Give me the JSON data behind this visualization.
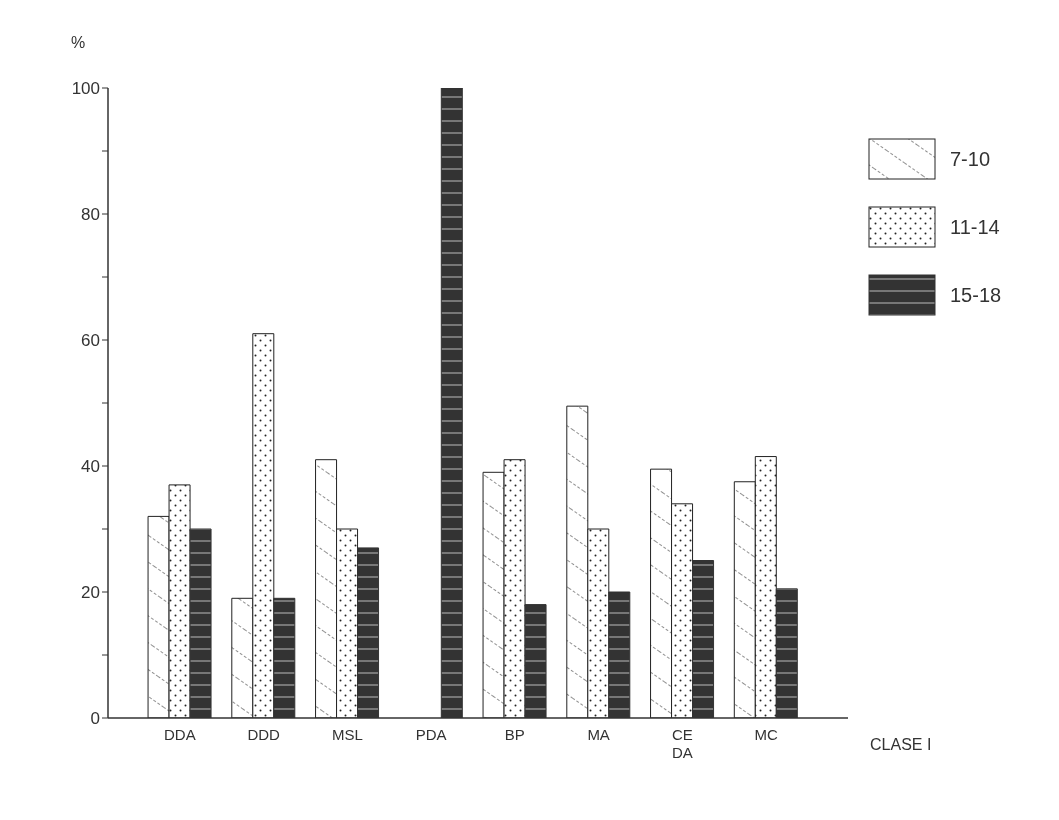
{
  "chart_data": {
    "type": "bar",
    "categories": [
      "DDA",
      "DDD",
      "MSL",
      "PDA",
      "BP",
      "MA",
      "CE\nDA",
      "MC"
    ],
    "series": [
      {
        "name": "7-10",
        "color": "#222222",
        "values": [
          32,
          19,
          41,
          null,
          39,
          49.5,
          39.5,
          37.5
        ]
      },
      {
        "name": "11-14",
        "color": "#222222",
        "values": [
          37,
          61,
          30,
          null,
          41,
          30,
          34,
          41.5
        ]
      },
      {
        "name": "15-18",
        "color": "#333333",
        "values": [
          30,
          19,
          27,
          100,
          18,
          20,
          25,
          20.5
        ]
      }
    ],
    "ylabel": "%",
    "xlabel": "CLASE I",
    "ylim": [
      0,
      100
    ],
    "yticks": [
      0,
      {
        "value": 10,
        "label": null
      },
      20,
      {
        "value": 30,
        "label": null
      },
      40,
      {
        "value": 50,
        "label": null
      },
      60,
      {
        "value": 70,
        "label": null
      },
      80,
      {
        "value": 90,
        "label": null
      },
      100
    ],
    "grid": false,
    "legend": "top right"
  }
}
